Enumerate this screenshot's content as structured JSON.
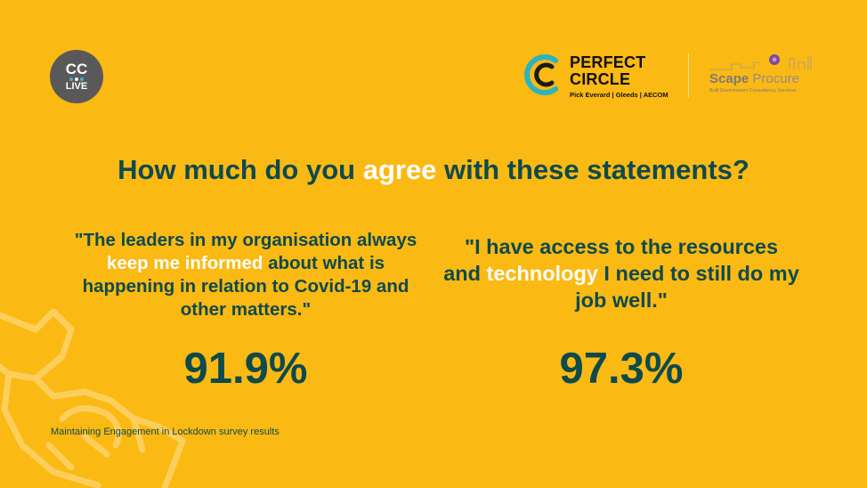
{
  "logos": {
    "cc_live": {
      "top": "CC",
      "bottom": "LIVE",
      "dot_colors": [
        "#3AB5C8",
        "#F2F2F2",
        "#3AB5C8"
      ]
    },
    "perfect_circle": {
      "line1": "PERFECT",
      "line2": "CIRCLE",
      "partners": "Pick Everard | Gleeds | AECOM"
    },
    "scape": {
      "name_bold": "Scape",
      "name_light": "Procure",
      "tagline": "Built Environment Consultancy Services"
    }
  },
  "headline": {
    "pre": "How much do you ",
    "highlight": "agree",
    "post": " with these statements?"
  },
  "statements": [
    {
      "pre": "\"The leaders in my organisation always ",
      "highlight": "keep me informed",
      "post": " about what is happening in relation to Covid-19 and other matters.\"",
      "stat": "91.9%"
    },
    {
      "pre": "\"I have access to the resources and ",
      "highlight": "technology",
      "post": " I need to still do my job well.\"",
      "stat": "97.3%"
    }
  ],
  "footnote": "Maintaining Engagement in Lockdown survey results",
  "colors": {
    "background": "#FBB913",
    "text_dark": "#0E4A4D",
    "highlight": "#FFFFFF",
    "pc_teal": "#2BB3C0"
  }
}
